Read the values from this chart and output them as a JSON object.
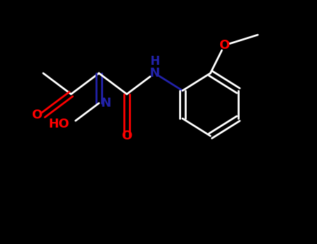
{
  "background_color": "#000000",
  "bond_color": "#ffffff",
  "atom_colors": {
    "O": "#ff0000",
    "N": "#2222aa",
    "H": "#ffffff",
    "C": "#ffffff"
  },
  "figsize": [
    4.55,
    3.5
  ],
  "dpi": 100,
  "font_size": 13,
  "lw": 2.0
}
